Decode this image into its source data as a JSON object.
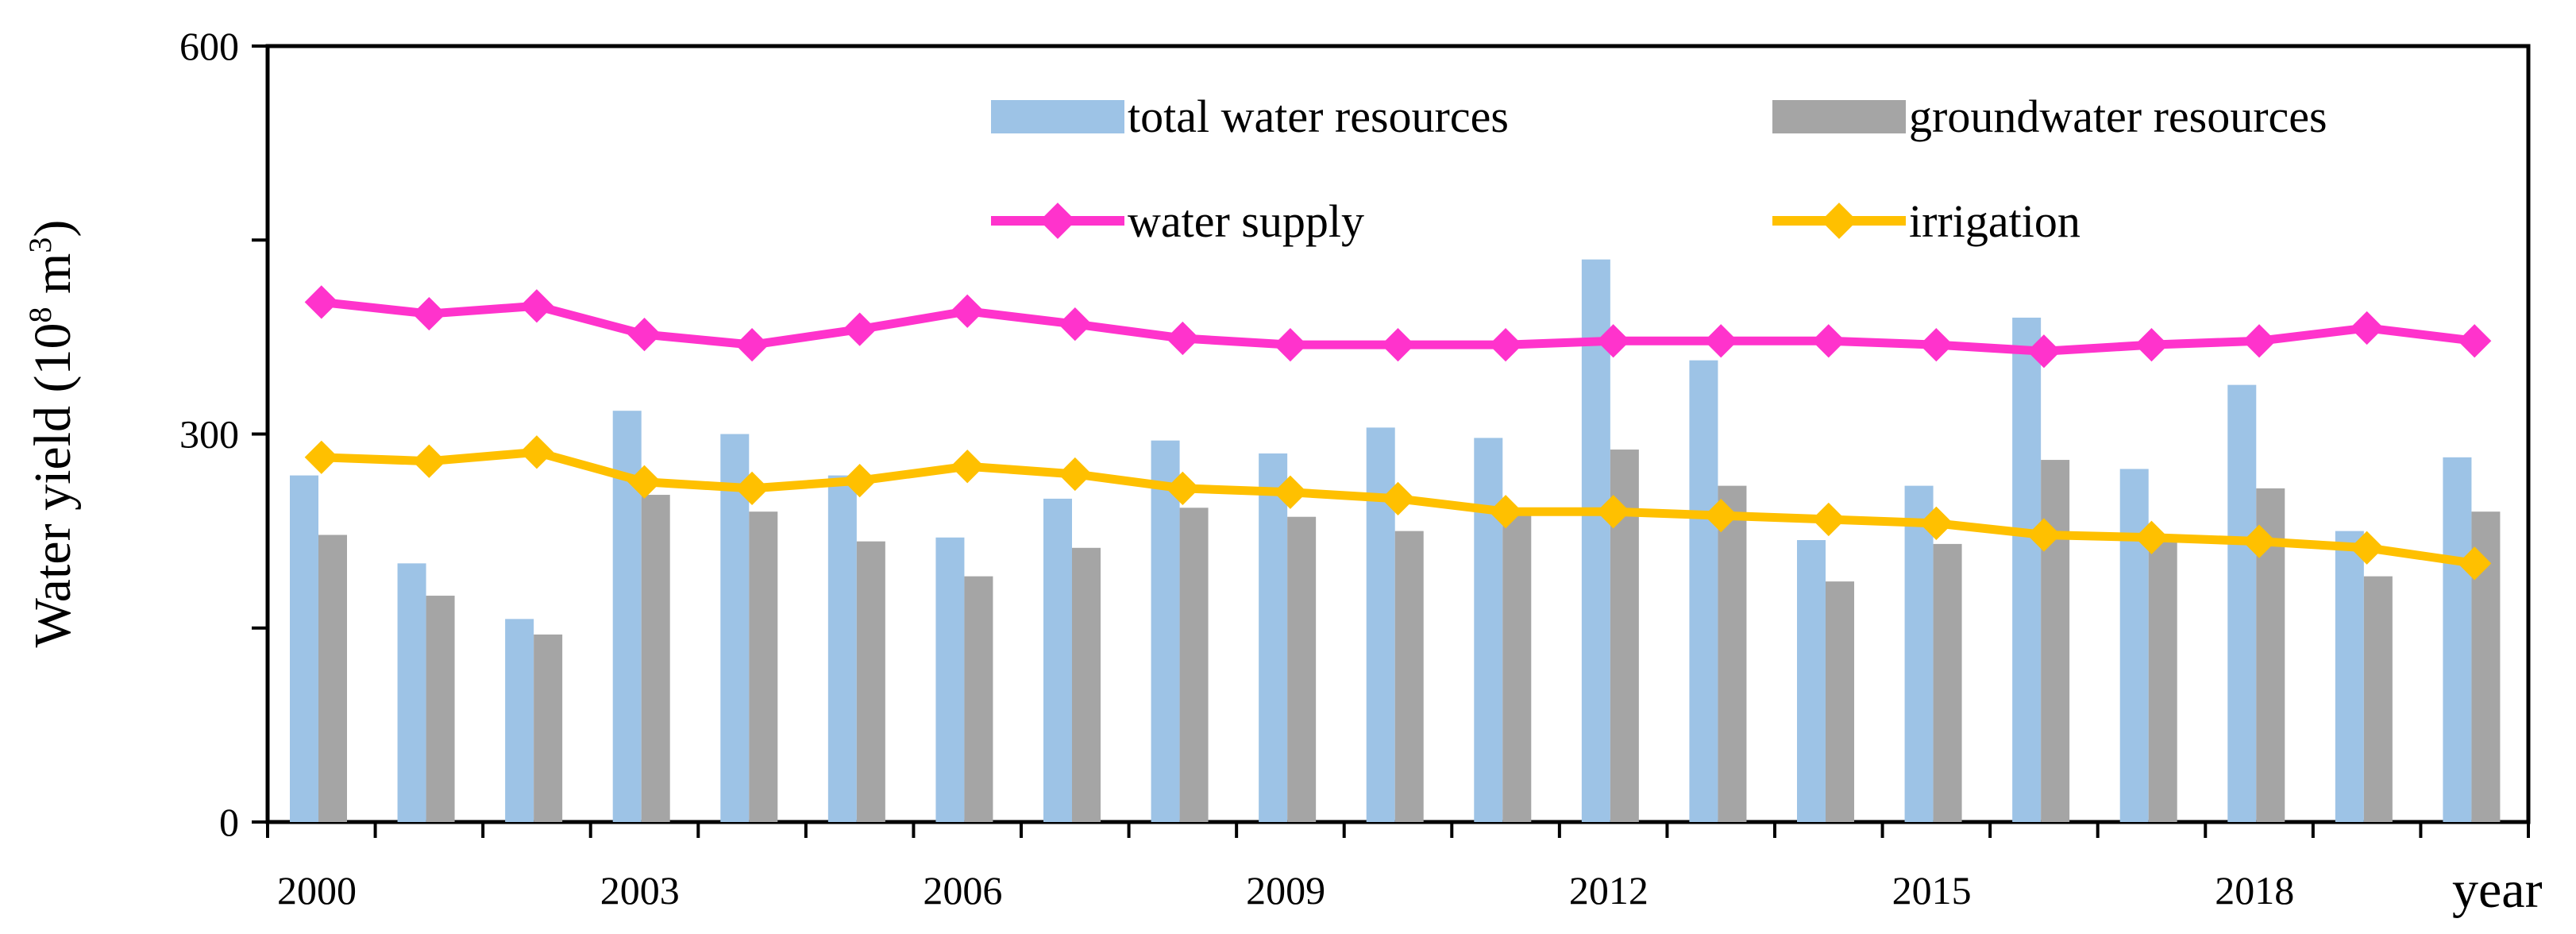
{
  "chart_data": {
    "type": "bar",
    "title": "",
    "xlabel": "year",
    "ylabel_main": "Water yield (10",
    "ylabel_sup1": "8",
    "ylabel_mid": " m",
    "ylabel_sup2": "3",
    "ylabel_end": ")",
    "ylim": [
      0,
      600
    ],
    "yticks": [
      "0",
      "300",
      "600"
    ],
    "yticks_values": [
      0,
      300,
      600
    ],
    "years": [
      2000,
      2001,
      2002,
      2003,
      2004,
      2005,
      2006,
      2007,
      2008,
      2009,
      2010,
      2011,
      2012,
      2013,
      2014,
      2015,
      2016,
      2017,
      2018,
      2019,
      2020
    ],
    "x_tick_labels": [
      "2000",
      "2003",
      "2006",
      "2009",
      "2012",
      "2015",
      "2018"
    ],
    "bar_series": [
      {
        "name": "total water resources",
        "color": "#9DC3E6",
        "values": [
          268,
          200,
          157,
          318,
          300,
          268,
          220,
          250,
          295,
          285,
          305,
          297,
          435,
          357,
          218,
          260,
          390,
          273,
          338,
          225,
          282
        ]
      },
      {
        "name": "groundwater resources",
        "color": "#A5A5A5",
        "values": [
          222,
          175,
          145,
          253,
          240,
          217,
          190,
          212,
          243,
          236,
          225,
          238,
          288,
          260,
          186,
          215,
          280,
          218,
          258,
          190,
          240
        ]
      }
    ],
    "line_series": [
      {
        "name": "water supply",
        "color": "#FF33CC",
        "values": [
          402,
          393,
          399,
          377,
          369,
          381,
          395,
          385,
          374,
          369,
          369,
          369,
          372,
          372,
          372,
          369,
          364,
          369,
          372,
          382,
          372
        ]
      },
      {
        "name": "irrigation",
        "color": "#FFC000",
        "values": [
          282,
          279,
          286,
          263,
          258,
          264,
          275,
          269,
          258,
          255,
          250,
          240,
          240,
          237,
          234,
          231,
          222,
          220,
          217,
          212,
          200
        ]
      }
    ],
    "legend": [
      "total water resources",
      "groundwater resources",
      "water supply",
      "irrigation"
    ],
    "legend_position": "top-right"
  }
}
